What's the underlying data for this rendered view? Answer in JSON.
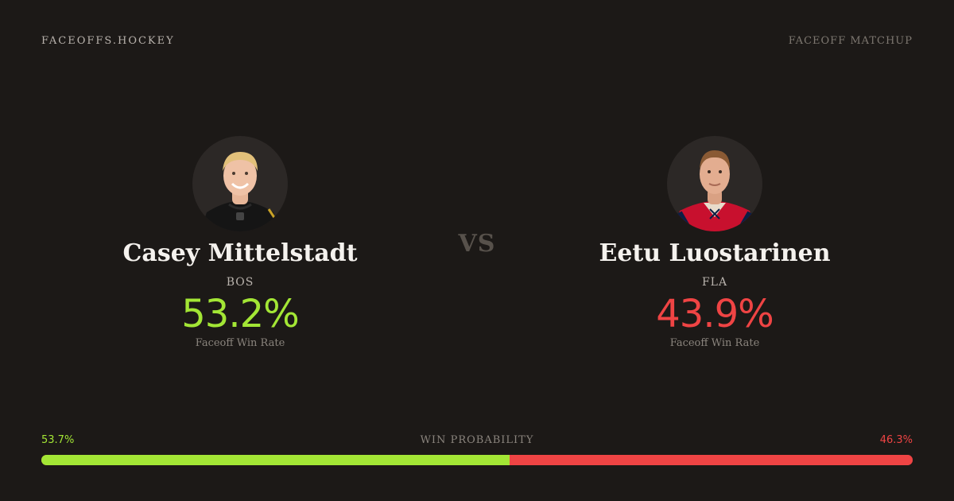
{
  "header": {
    "brand": "FACEOFFS.HOCKEY",
    "page_label": "FACEOFF MATCHUP"
  },
  "vs_label": "VS",
  "players": {
    "left": {
      "name": "Casey Mittelstadt",
      "team": "BOS",
      "faceoff_win_rate": "53.2%",
      "rate_label": "Faceoff Win Rate",
      "avatar_icon": "player-headshot-icon",
      "accent_color": "#a3e635"
    },
    "right": {
      "name": "Eetu Luostarinen",
      "team": "FLA",
      "faceoff_win_rate": "43.9%",
      "rate_label": "Faceoff Win Rate",
      "avatar_icon": "player-headshot-icon",
      "accent_color": "#ef4444"
    }
  },
  "win_probability": {
    "title": "WIN PROBABILITY",
    "left_label": "53.7%",
    "right_label": "46.3%",
    "left_value": 53.7,
    "right_value": 46.3
  },
  "colors": {
    "background": "#1c1917",
    "left_accent": "#a3e635",
    "right_accent": "#ef4444"
  }
}
